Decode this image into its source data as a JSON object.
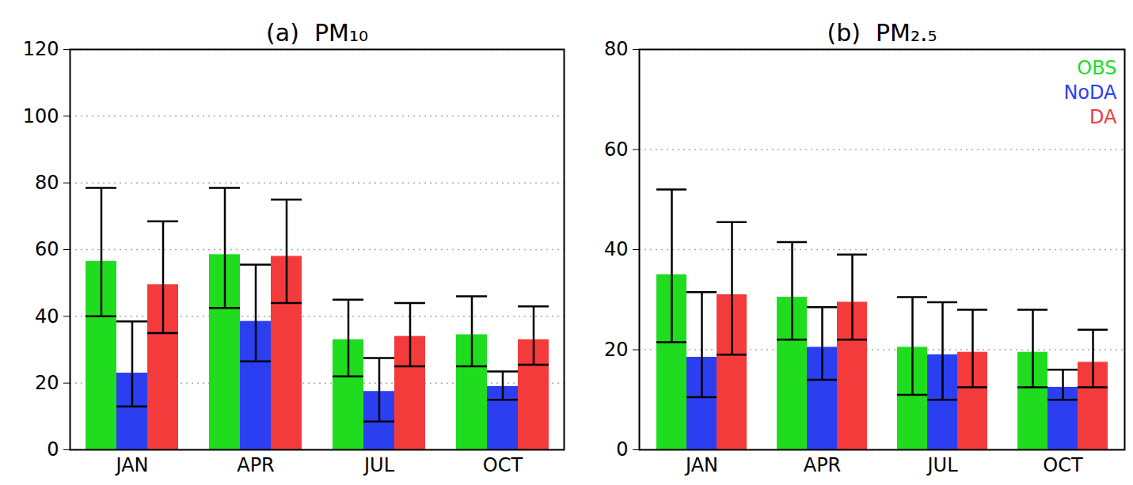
{
  "chart_data": [
    {
      "type": "bar",
      "title": "(a)  PM₁₀",
      "categories": [
        "JAN",
        "APR",
        "JUL",
        "OCT"
      ],
      "series": [
        {
          "name": "OBS",
          "color": "#1fdc1f",
          "values": [
            56.5,
            58.5,
            33,
            34.5
          ],
          "error_lower": [
            40,
            42.5,
            22,
            25
          ],
          "error_upper": [
            78.5,
            78.5,
            45,
            46
          ]
        },
        {
          "name": "NoDA",
          "color": "#2b3ff0",
          "values": [
            23,
            38.5,
            17.5,
            19
          ],
          "error_lower": [
            13,
            26.5,
            8.5,
            15
          ],
          "error_upper": [
            38.5,
            55.5,
            27.5,
            23.5
          ]
        },
        {
          "name": "DA",
          "color": "#f43b3b",
          "values": [
            49.5,
            58,
            34,
            33
          ],
          "error_lower": [
            35,
            44,
            25,
            25.5
          ],
          "error_upper": [
            68.5,
            75,
            44,
            43
          ]
        }
      ],
      "ylim": [
        0,
        120
      ],
      "yticks": [
        0,
        20,
        40,
        60,
        80,
        100,
        120
      ],
      "grid": true
    },
    {
      "type": "bar",
      "title": "(b)  PM₂.₅",
      "categories": [
        "JAN",
        "APR",
        "JUL",
        "OCT"
      ],
      "series": [
        {
          "name": "OBS",
          "color": "#1fdc1f",
          "values": [
            35,
            30.5,
            20.5,
            19.5
          ],
          "error_lower": [
            21.5,
            22,
            11,
            12.5
          ],
          "error_upper": [
            52,
            41.5,
            30.5,
            28
          ]
        },
        {
          "name": "NoDA",
          "color": "#2b3ff0",
          "values": [
            18.5,
            20.5,
            19,
            12.5
          ],
          "error_lower": [
            10.5,
            14,
            10,
            10
          ],
          "error_upper": [
            31.5,
            28.5,
            29.5,
            16
          ]
        },
        {
          "name": "DA",
          "color": "#f43b3b",
          "values": [
            31,
            29.5,
            19.5,
            17.5
          ],
          "error_lower": [
            19,
            22,
            12.5,
            12.5
          ],
          "error_upper": [
            45.5,
            39,
            28,
            24
          ]
        }
      ],
      "ylim": [
        0,
        80
      ],
      "yticks": [
        0,
        20,
        40,
        60,
        80
      ],
      "grid": true,
      "legend": "top-right"
    }
  ]
}
